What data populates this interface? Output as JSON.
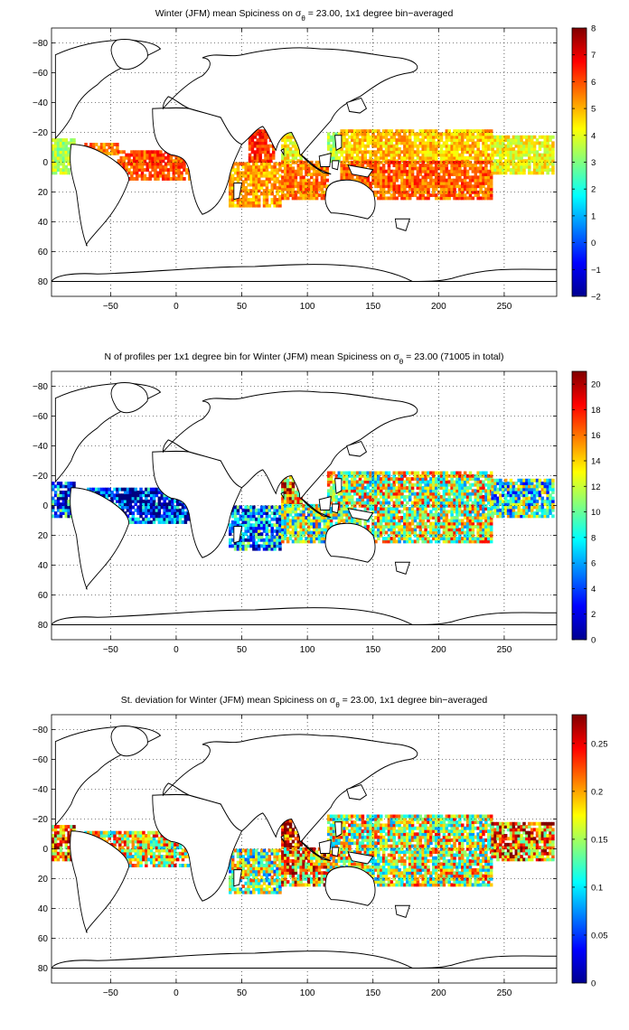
{
  "figure": {
    "panels": [
      {
        "id": "spiciness",
        "title_main": "Winter (JFM) mean Spiciness on σ",
        "title_sub": "θ",
        "title_rest": " = 23.00, 1x1 degree bin−averaged",
        "colormap": "jet",
        "colorbar_range": [
          -2,
          8
        ],
        "colorbar_ticks": [
          "−2",
          "−1",
          "0",
          "1",
          "2",
          "3",
          "4",
          "5",
          "6",
          "7",
          "8"
        ]
      },
      {
        "id": "profile-count",
        "title_main": "N of profiles per 1x1 degree bin for Winter (JFM) mean Spiciness on σ",
        "title_sub": "θ",
        "title_rest": " = 23.00 (71005 in total)",
        "colormap": "jet",
        "colorbar_range": [
          0,
          21
        ],
        "colorbar_ticks": [
          "0",
          "2",
          "4",
          "6",
          "8",
          "10",
          "12",
          "14",
          "16",
          "18",
          "20"
        ]
      },
      {
        "id": "std-deviation",
        "title_main": "St. deviation for Winter (JFM) mean Spiciness on σ",
        "title_sub": "θ",
        "title_rest": " = 23.00, 1x1 degree bin−averaged",
        "colormap": "jet",
        "colorbar_range": [
          0,
          0.28
        ],
        "colorbar_ticks": [
          "0",
          "0.05",
          "0.1",
          "0.15",
          "0.2",
          "0.25"
        ]
      }
    ],
    "x_tick_labels": [
      "−50",
      "0",
      "50",
      "100",
      "150",
      "200",
      "250"
    ],
    "y_tick_labels": [
      "80",
      "60",
      "40",
      "20",
      "0",
      "−20",
      "−40",
      "−60",
      "−80"
    ]
  },
  "chart_data": [
    {
      "type": "heatmap",
      "title": "Winter (JFM) mean Spiciness on σθ = 23.00, 1x1 degree bin−averaged",
      "x": {
        "range": [
          -95,
          290
        ],
        "ticks": [
          -50,
          0,
          50,
          100,
          150,
          200,
          250
        ]
      },
      "y": {
        "range": [
          -90,
          90
        ],
        "ticks": [
          -80,
          -60,
          -40,
          -20,
          0,
          20,
          40,
          60,
          80
        ]
      },
      "grid": true,
      "colorbar": {
        "min": -2,
        "max": 8,
        "ticks": [
          -2,
          -1,
          0,
          1,
          2,
          3,
          4,
          5,
          6,
          7,
          8
        ]
      },
      "regions": [
        {
          "lon": [
            -95,
            -78
          ],
          "lat": [
            -8,
            15
          ],
          "value": 3.5
        },
        {
          "lon": [
            -70,
            -45
          ],
          "lat": [
            5,
            12
          ],
          "value": 5.5
        },
        {
          "lon": [
            -45,
            10
          ],
          "lat": [
            -12,
            8
          ],
          "value": 6.0
        },
        {
          "lon": [
            40,
            80
          ],
          "lat": [
            -30,
            0
          ],
          "value": 5.2
        },
        {
          "lon": [
            55,
            75
          ],
          "lat": [
            0,
            22
          ],
          "value": 6.3
        },
        {
          "lon": [
            80,
            95
          ],
          "lat": [
            0,
            22
          ],
          "value": 4.3
        },
        {
          "lon": [
            80,
            115
          ],
          "lat": [
            -25,
            0
          ],
          "value": 5.6
        },
        {
          "lon": [
            115,
            125
          ],
          "lat": [
            0,
            20
          ],
          "value": 3.5
        },
        {
          "lon": [
            125,
            240
          ],
          "lat": [
            0,
            22
          ],
          "value": 4.8
        },
        {
          "lon": [
            125,
            240
          ],
          "lat": [
            -25,
            0
          ],
          "value": 5.8
        },
        {
          "lon": [
            240,
            288
          ],
          "lat": [
            -8,
            18
          ],
          "value": 4.2
        }
      ]
    },
    {
      "type": "heatmap",
      "title": "N of profiles per 1x1 degree bin for Winter (JFM) mean Spiciness on σθ = 23.00 (71005 in total)",
      "total_profiles": 71005,
      "x": {
        "range": [
          -95,
          290
        ],
        "ticks": [
          -50,
          0,
          50,
          100,
          150,
          200,
          250
        ]
      },
      "y": {
        "range": [
          -90,
          90
        ],
        "ticks": [
          -80,
          -60,
          -40,
          -20,
          0,
          20,
          40,
          60,
          80
        ]
      },
      "grid": true,
      "colorbar": {
        "min": 0,
        "max": 21,
        "ticks": [
          0,
          2,
          4,
          6,
          8,
          10,
          12,
          14,
          16,
          18,
          20
        ]
      },
      "regions": [
        {
          "lon": [
            -95,
            -78
          ],
          "lat": [
            -8,
            15
          ],
          "value": 5
        },
        {
          "lon": [
            -70,
            10
          ],
          "lat": [
            -12,
            12
          ],
          "value": 3
        },
        {
          "lon": [
            40,
            80
          ],
          "lat": [
            -30,
            0
          ],
          "value": 6
        },
        {
          "lon": [
            80,
            95
          ],
          "lat": [
            0,
            22
          ],
          "value": 16
        },
        {
          "lon": [
            80,
            115
          ],
          "lat": [
            -25,
            0
          ],
          "value": 10
        },
        {
          "lon": [
            115,
            240
          ],
          "lat": [
            -25,
            22
          ],
          "value": 12
        },
        {
          "lon": [
            240,
            288
          ],
          "lat": [
            -8,
            18
          ],
          "value": 9
        }
      ]
    },
    {
      "type": "heatmap",
      "title": "St. deviation for Winter (JFM) mean Spiciness on σθ = 23.00, 1x1 degree bin−averaged",
      "x": {
        "range": [
          -95,
          290
        ],
        "ticks": [
          -50,
          0,
          50,
          100,
          150,
          200,
          250
        ]
      },
      "y": {
        "range": [
          -90,
          90
        ],
        "ticks": [
          -80,
          -60,
          -40,
          -20,
          0,
          20,
          40,
          60,
          80
        ]
      },
      "grid": true,
      "colorbar": {
        "min": 0,
        "max": 0.28,
        "ticks": [
          0,
          0.05,
          0.1,
          0.15,
          0.2,
          0.25
        ]
      },
      "regions": [
        {
          "lon": [
            -95,
            -78
          ],
          "lat": [
            -8,
            15
          ],
          "value": 0.22
        },
        {
          "lon": [
            -70,
            10
          ],
          "lat": [
            -12,
            12
          ],
          "value": 0.17
        },
        {
          "lon": [
            40,
            80
          ],
          "lat": [
            -30,
            0
          ],
          "value": 0.14
        },
        {
          "lon": [
            80,
            95
          ],
          "lat": [
            0,
            22
          ],
          "value": 0.26
        },
        {
          "lon": [
            80,
            115
          ],
          "lat": [
            -25,
            0
          ],
          "value": 0.2
        },
        {
          "lon": [
            115,
            240
          ],
          "lat": [
            -25,
            22
          ],
          "value": 0.16
        },
        {
          "lon": [
            240,
            288
          ],
          "lat": [
            -8,
            18
          ],
          "value": 0.21
        }
      ]
    }
  ]
}
